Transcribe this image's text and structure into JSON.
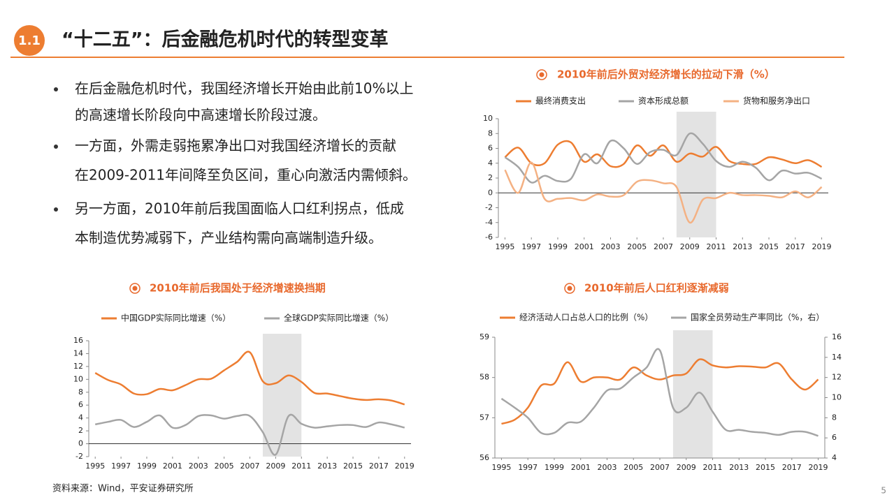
{
  "header": {
    "badge": "1.1",
    "title": "“十二五”：后金融危机时代的转型变革"
  },
  "bullets": [
    [
      "在后金融危机时代，我国经济增长开始由此前10%以上",
      "的高速增长阶段向中高速增长阶段过渡。"
    ],
    [
      "一方面，外需走弱拖累净出口对我国经济增长的贡献",
      "在2009-2011年间降至负区间，重心向激活内需倾斜。"
    ],
    [
      "另一方面，2010年前后我国面临人口红利拐点，低成",
      "本制造优势减弱下，产业结构需向高端制造升级。"
    ]
  ],
  "chart_data": [
    {
      "type": "line",
      "title": "2010年前后外贸对经济增长的拉动下滑（%）",
      "x": [
        1995,
        1996,
        1997,
        1998,
        1999,
        2000,
        2001,
        2002,
        2003,
        2004,
        2005,
        2006,
        2007,
        2008,
        2009,
        2010,
        2011,
        2012,
        2013,
        2014,
        2015,
        2016,
        2017,
        2018,
        2019
      ],
      "xlim": [
        1994.5,
        2019.5
      ],
      "xticks": [
        1995,
        1997,
        1999,
        2001,
        2003,
        2005,
        2007,
        2009,
        2011,
        2013,
        2015,
        2017,
        2019
      ],
      "ylim": [
        -6,
        10
      ],
      "yticks": [
        -6,
        -4,
        -2,
        0,
        2,
        4,
        6,
        8,
        10
      ],
      "highlight_x": [
        2008,
        2011
      ],
      "series": [
        {
          "name": "最终消费支出",
          "color": "#ed7d31",
          "values": [
            4.8,
            6.1,
            4.0,
            4.0,
            6.5,
            6.8,
            4.2,
            5.2,
            3.6,
            3.9,
            6.4,
            5.0,
            6.4,
            4.2,
            5.3,
            4.9,
            6.2,
            4.3,
            3.9,
            3.9,
            4.8,
            4.5,
            4.0,
            4.4,
            3.5
          ]
        },
        {
          "name": "资本形成总额",
          "color": "#a5a5a5",
          "values": [
            4.8,
            3.5,
            1.4,
            2.3,
            1.6,
            1.9,
            5.2,
            4.0,
            7.0,
            6.0,
            3.9,
            5.5,
            5.8,
            5.1,
            8.0,
            6.6,
            4.3,
            3.5,
            4.2,
            3.4,
            1.7,
            3.0,
            2.6,
            2.7,
            1.9
          ]
        },
        {
          "name": "货物和服务净出口",
          "color": "#f4b183",
          "values": [
            3.1,
            0.0,
            4.1,
            -0.8,
            -0.8,
            -0.7,
            -1.0,
            -0.2,
            -0.5,
            -0.3,
            1.5,
            1.7,
            1.3,
            0.8,
            -4.0,
            -0.9,
            -0.7,
            0.0,
            -0.3,
            -0.3,
            -0.4,
            -0.6,
            0.2,
            -0.6,
            0.8
          ]
        }
      ]
    },
    {
      "type": "line",
      "title": "2010年前后我国处于经济增速换挡期",
      "x": [
        1995,
        1996,
        1997,
        1998,
        1999,
        2000,
        2001,
        2002,
        2003,
        2004,
        2005,
        2006,
        2007,
        2008,
        2009,
        2010,
        2011,
        2012,
        2013,
        2014,
        2015,
        2016,
        2017,
        2018,
        2019
      ],
      "xlim": [
        1994.5,
        2019.5
      ],
      "xticks": [
        1995,
        1997,
        1999,
        2001,
        2003,
        2005,
        2007,
        2009,
        2011,
        2013,
        2015,
        2017,
        2019
      ],
      "ylim": [
        -2,
        16
      ],
      "yticks": [
        -2,
        0,
        2,
        4,
        6,
        8,
        10,
        12,
        14,
        16
      ],
      "highlight_x": [
        2008,
        2011
      ],
      "series": [
        {
          "name": "中国GDP实际同比增速（%）",
          "color": "#ed7d31",
          "values": [
            11.0,
            9.9,
            9.2,
            7.8,
            7.7,
            8.5,
            8.3,
            9.1,
            10.0,
            10.1,
            11.4,
            12.7,
            14.2,
            9.7,
            9.4,
            10.6,
            9.6,
            7.9,
            7.8,
            7.4,
            7.0,
            6.8,
            6.9,
            6.7,
            6.1
          ]
        },
        {
          "name": "全球GDP实际同比增速（%）",
          "color": "#a5a5a5",
          "values": [
            3.0,
            3.4,
            3.7,
            2.6,
            3.4,
            4.4,
            2.5,
            2.9,
            4.3,
            4.4,
            3.9,
            4.3,
            4.3,
            1.8,
            -1.7,
            4.3,
            3.1,
            2.5,
            2.7,
            2.9,
            2.9,
            2.6,
            3.3,
            3.0,
            2.5
          ]
        }
      ]
    },
    {
      "type": "line",
      "title": "2010年前后人口红利逐渐减弱",
      "x": [
        1995,
        1996,
        1997,
        1998,
        1999,
        2000,
        2001,
        2002,
        2003,
        2004,
        2005,
        2006,
        2007,
        2008,
        2009,
        2010,
        2011,
        2012,
        2013,
        2014,
        2015,
        2016,
        2017,
        2018,
        2019
      ],
      "xlim": [
        1994.5,
        2019.5
      ],
      "xticks": [
        1995,
        1997,
        1999,
        2001,
        2003,
        2005,
        2007,
        2009,
        2011,
        2013,
        2015,
        2017,
        2019
      ],
      "ylim": [
        56,
        59
      ],
      "yticks": [
        56,
        57,
        58,
        59
      ],
      "y2lim": [
        4,
        16
      ],
      "y2ticks": [
        4,
        6,
        8,
        10,
        12,
        14,
        16
      ],
      "highlight_x": [
        2008,
        2011
      ],
      "series": [
        {
          "name": "经济活动人口占总人口的比例（%）",
          "color": "#ed7d31",
          "values": [
            56.85,
            56.95,
            57.25,
            57.8,
            57.85,
            58.38,
            57.9,
            58.0,
            58.0,
            57.95,
            58.25,
            58.05,
            57.95,
            58.05,
            58.1,
            58.45,
            58.3,
            58.25,
            58.28,
            58.27,
            58.25,
            58.35,
            57.95,
            57.7,
            57.95
          ]
        },
        {
          "name": "国家全员劳动生产率同比（%，右）",
          "color": "#a5a5a5",
          "axis": "y2",
          "values": [
            9.9,
            9.0,
            8.0,
            6.5,
            6.5,
            7.5,
            7.6,
            9.0,
            10.7,
            10.9,
            12.0,
            13.0,
            14.7,
            9.0,
            9.0,
            10.5,
            8.6,
            6.8,
            6.8,
            6.6,
            6.5,
            6.3,
            6.6,
            6.6,
            6.2
          ]
        }
      ]
    }
  ],
  "source": "资料来源：Wind，平安证券研究所",
  "page": "5"
}
